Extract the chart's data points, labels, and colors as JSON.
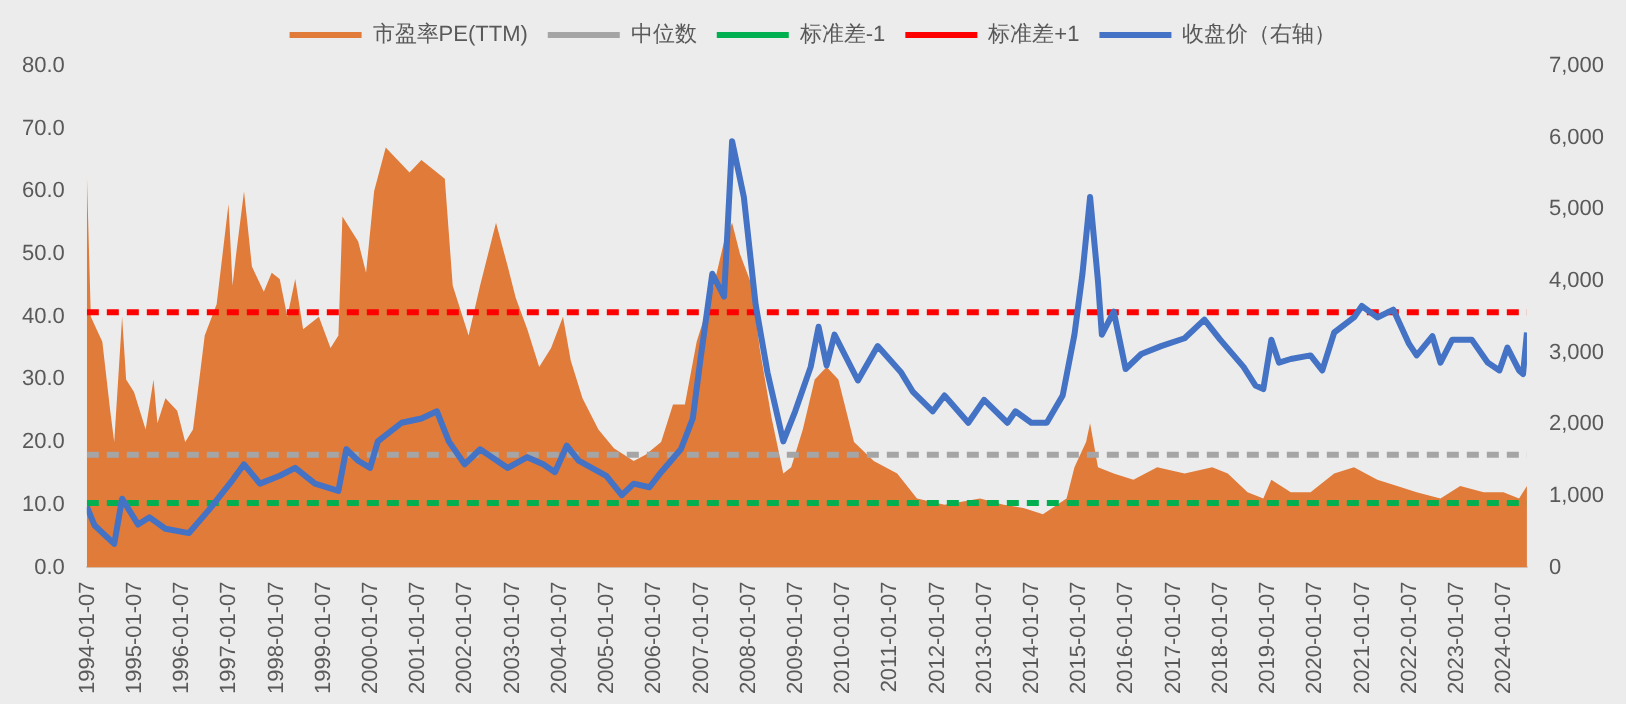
{
  "chart_data": {
    "type": "area",
    "xlim": [
      "1994-01",
      "2024-07"
    ],
    "xticks": [
      "1994-01-07",
      "1995-01-07",
      "1996-01-07",
      "1997-01-07",
      "1998-01-07",
      "1999-01-07",
      "2000-01-07",
      "2001-01-07",
      "2002-01-07",
      "2003-01-07",
      "2004-01-07",
      "2005-01-07",
      "2006-01-07",
      "2007-01-07",
      "2008-01-07",
      "2009-01-07",
      "2010-01-07",
      "2011-01-07",
      "2012-01-07",
      "2013-01-07",
      "2014-01-07",
      "2015-01-07",
      "2016-01-07",
      "2017-01-07",
      "2018-01-07",
      "2019-01-07",
      "2020-01-07",
      "2021-01-07",
      "2022-01-07",
      "2023-01-07",
      "2024-01-07"
    ],
    "ylim": [
      0,
      80
    ],
    "yticks": [
      {
        "value": 0,
        "label": "0.0"
      },
      {
        "value": 10,
        "label": "10.0"
      },
      {
        "value": 20,
        "label": "20.0"
      },
      {
        "value": 30,
        "label": "30.0"
      },
      {
        "value": 40,
        "label": "40.0"
      },
      {
        "value": 50,
        "label": "50.0"
      },
      {
        "value": 60,
        "label": "60.0"
      },
      {
        "value": 70,
        "label": "70.0"
      },
      {
        "value": 80,
        "label": "80.0"
      }
    ],
    "y2lim": [
      0,
      7000
    ],
    "y2ticks": [
      {
        "value": 0,
        "label": "0"
      },
      {
        "value": 1000,
        "label": "1,000"
      },
      {
        "value": 2000,
        "label": "2,000"
      },
      {
        "value": 3000,
        "label": "3,000"
      },
      {
        "value": 4000,
        "label": "4,000"
      },
      {
        "value": 5000,
        "label": "5,000"
      },
      {
        "value": 6000,
        "label": "6,000"
      },
      {
        "value": 7000,
        "label": "7,000"
      }
    ],
    "grid": false,
    "legend": "top",
    "marker": "none",
    "ref_lines": [
      {
        "axis": "y",
        "value": 18,
        "label": "中位数",
        "color": "#a5a5a5",
        "line_style": "dashed"
      },
      {
        "axis": "y",
        "value": 10.3,
        "label": "标准差-1",
        "color": "#00b050",
        "line_style": "dashed"
      },
      {
        "axis": "y",
        "value": 40.7,
        "label": "标准差+1",
        "color": "#ff0000",
        "line_style": "dashed"
      }
    ],
    "series": [
      {
        "name": "市盈率PE(TTM)",
        "color": "#e07b39",
        "x": [
          "1994-01",
          "1994-02",
          "1994-05",
          "1994-07",
          "1994-08",
          "1994-10",
          "1994-11",
          "1995-01",
          "1995-04",
          "1995-06",
          "1995-07",
          "1995-09",
          "1995-12",
          "1996-02",
          "1996-04",
          "1996-06",
          "1996-07",
          "1996-10",
          "1997-01",
          "1997-02",
          "1997-03",
          "1997-05",
          "1997-07",
          "1997-10",
          "1997-12",
          "1998-02",
          "1998-04",
          "1998-06",
          "1998-08",
          "1998-12",
          "1999-03",
          "1999-05",
          "1999-06",
          "1999-10",
          "1999-12",
          "2000-02",
          "2000-05",
          "2000-11",
          "2001-02",
          "2001-08",
          "2001-10",
          "2002-02",
          "2002-05",
          "2002-09",
          "2002-12",
          "2003-02",
          "2003-05",
          "2003-08",
          "2003-11",
          "2004-02",
          "2004-04",
          "2004-07",
          "2004-11",
          "2005-03",
          "2005-08",
          "2005-11",
          "2006-03",
          "2006-06",
          "2006-09",
          "2006-12",
          "2007-04",
          "2007-07",
          "2007-09",
          "2007-11",
          "2008-02",
          "2008-04",
          "2008-07",
          "2008-10",
          "2008-12",
          "2009-03",
          "2009-06",
          "2009-09",
          "2009-12",
          "2010-04",
          "2010-09",
          "2011-03",
          "2011-08",
          "2012-03",
          "2012-12",
          "2013-06",
          "2013-11",
          "2014-04",
          "2014-10",
          "2014-12",
          "2015-03",
          "2015-04",
          "2015-06",
          "2015-10",
          "2016-03",
          "2016-09",
          "2017-04",
          "2017-11",
          "2018-03",
          "2018-08",
          "2018-12",
          "2019-02",
          "2019-07",
          "2019-12",
          "2020-06",
          "2020-11",
          "2021-05",
          "2021-10",
          "2022-03",
          "2022-09",
          "2023-02",
          "2023-08",
          "2024-01",
          "2024-05",
          "2024-07"
        ],
        "values": [
          63,
          40,
          36,
          25,
          20,
          40,
          30,
          28,
          22,
          30,
          23,
          27,
          25,
          20,
          22,
          32,
          37,
          42,
          58,
          45,
          50,
          60,
          48,
          44,
          47,
          46,
          40,
          46,
          38,
          40,
          35,
          37,
          56,
          52,
          47,
          60,
          67,
          63,
          65,
          62,
          45,
          37,
          45,
          55,
          48,
          43,
          38,
          32,
          35,
          40,
          33,
          27,
          22,
          19,
          17,
          18,
          20,
          26,
          26,
          36,
          44,
          52,
          55,
          50,
          45,
          35,
          24,
          15,
          16,
          22,
          30,
          32,
          30,
          20,
          17,
          15,
          11,
          10,
          11,
          10,
          9.5,
          8.5,
          11,
          16,
          20,
          23,
          16,
          15,
          14,
          16,
          15,
          16,
          15,
          12,
          11,
          14,
          12,
          12,
          15,
          16,
          14,
          13,
          12,
          11,
          13,
          12,
          12,
          11,
          13
        ]
      },
      {
        "name": "收盘价（右轴）",
        "type": "line",
        "axis": "y2",
        "color": "#4472c4",
        "line_style": "solid",
        "x": [
          "1994-01",
          "1994-03",
          "1994-08",
          "1994-10",
          "1995-02",
          "1995-05",
          "1995-09",
          "1996-03",
          "1996-08",
          "1997-02",
          "1997-05",
          "1997-09",
          "1998-02",
          "1998-06",
          "1998-11",
          "1999-05",
          "1999-07",
          "1999-10",
          "2000-01",
          "2000-03",
          "2000-09",
          "2001-02",
          "2001-06",
          "2001-09",
          "2002-01",
          "2002-05",
          "2002-12",
          "2003-05",
          "2003-09",
          "2003-12",
          "2004-03",
          "2004-06",
          "2005-01",
          "2005-05",
          "2005-08",
          "2005-12",
          "2006-03",
          "2006-08",
          "2006-11",
          "2007-01",
          "2007-04",
          "2007-07",
          "2007-09",
          "2007-12",
          "2008-03",
          "2008-06",
          "2008-10",
          "2009-01",
          "2009-05",
          "2009-07",
          "2009-09",
          "2009-11",
          "2010-05",
          "2010-10",
          "2011-04",
          "2011-07",
          "2011-12",
          "2012-03",
          "2012-09",
          "2013-01",
          "2013-07",
          "2013-09",
          "2014-01",
          "2014-05",
          "2014-09",
          "2014-12",
          "2015-02",
          "2015-04",
          "2015-06",
          "2015-07",
          "2015-10",
          "2016-01",
          "2016-05",
          "2016-10",
          "2017-04",
          "2017-09",
          "2018-01",
          "2018-07",
          "2018-10",
          "2018-12",
          "2019-02",
          "2019-04",
          "2019-07",
          "2019-12",
          "2020-03",
          "2020-06",
          "2020-11",
          "2021-01",
          "2021-05",
          "2021-09",
          "2022-01",
          "2022-03",
          "2022-07",
          "2022-09",
          "2022-12",
          "2023-05",
          "2023-09",
          "2023-12",
          "2024-02",
          "2024-05",
          "2024-06",
          "2024-07"
        ],
        "values": [
          850,
          590,
          330,
          960,
          600,
          700,
          540,
          480,
          800,
          1220,
          1440,
          1170,
          1280,
          1390,
          1170,
          1070,
          1650,
          1490,
          1390,
          1760,
          2020,
          2080,
          2180,
          1760,
          1440,
          1650,
          1390,
          1540,
          1440,
          1330,
          1700,
          1490,
          1280,
          1010,
          1170,
          1120,
          1330,
          1650,
          2080,
          2930,
          4100,
          3780,
          5950,
          5170,
          3670,
          2720,
          1760,
          2180,
          2800,
          3360,
          2820,
          3250,
          2610,
          3090,
          2720,
          2450,
          2180,
          2400,
          2020,
          2340,
          2020,
          2180,
          2020,
          2020,
          2400,
          3250,
          4100,
          5170,
          4000,
          3250,
          3570,
          2770,
          2980,
          3090,
          3200,
          3460,
          3180,
          2800,
          2540,
          2490,
          3180,
          2860,
          2910,
          2960,
          2750,
          3280,
          3490,
          3650,
          3490,
          3600,
          3120,
          2960,
          3230,
          2860,
          3180,
          3180,
          2860,
          2750,
          3070,
          2750,
          2700,
          3280
        ]
      }
    ]
  }
}
